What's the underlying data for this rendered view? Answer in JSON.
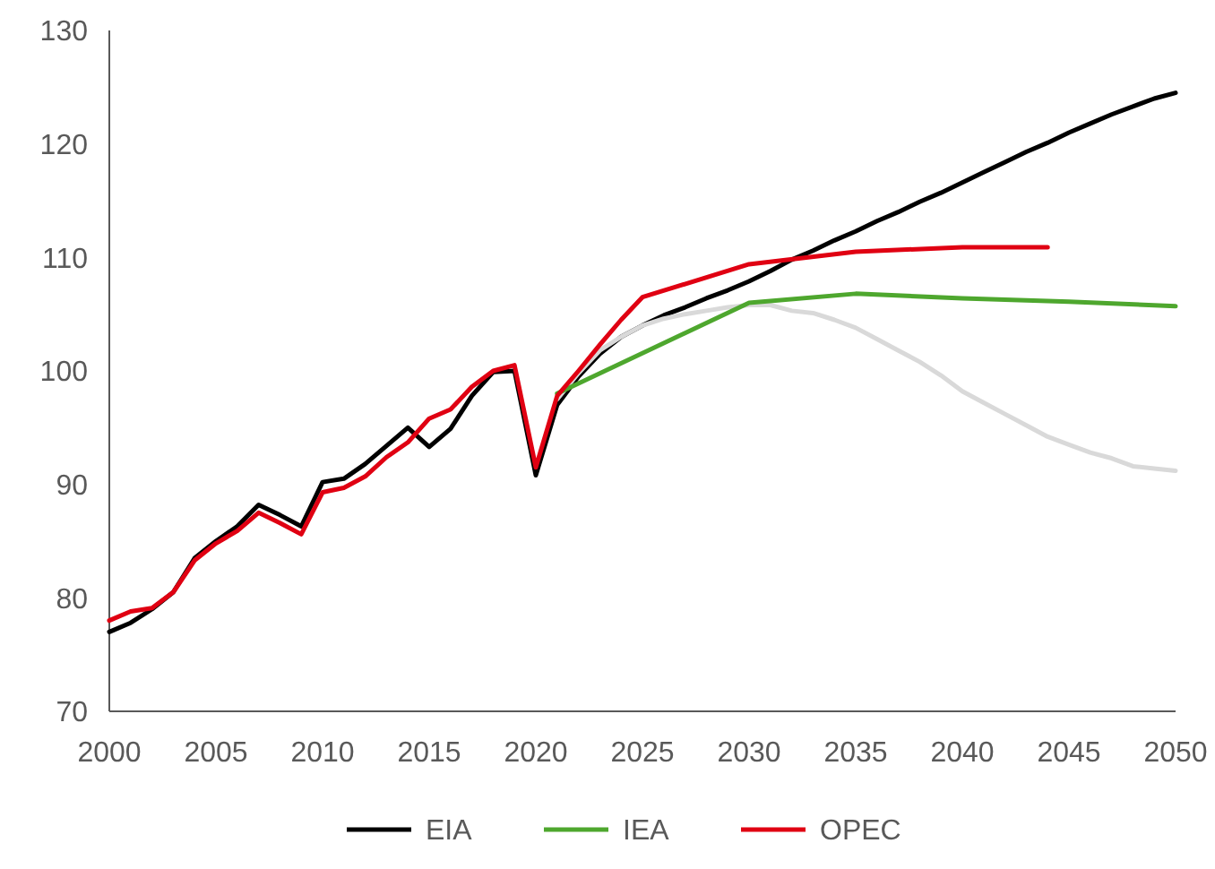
{
  "chart_data": {
    "type": "line",
    "xlim": [
      2000,
      2050
    ],
    "xticks": [
      2000,
      2005,
      2010,
      2015,
      2020,
      2025,
      2030,
      2035,
      2040,
      2045,
      2050
    ],
    "ylim": [
      70,
      130
    ],
    "yticks": [
      70,
      80,
      90,
      100,
      110,
      120,
      130
    ],
    "grid": false,
    "legend": "bottom",
    "line_style": "solid",
    "marker": "none",
    "series": [
      {
        "name": "EIA",
        "color": "#000000",
        "x": [
          2000,
          2001,
          2002,
          2003,
          2004,
          2005,
          2006,
          2007,
          2008,
          2009,
          2010,
          2011,
          2012,
          2013,
          2014,
          2015,
          2016,
          2017,
          2018,
          2019,
          2020,
          2021,
          2022,
          2023,
          2024,
          2025,
          2026,
          2027,
          2028,
          2029,
          2030,
          2031,
          2032,
          2033,
          2034,
          2035,
          2036,
          2037,
          2038,
          2039,
          2040,
          2041,
          2042,
          2043,
          2044,
          2045,
          2046,
          2047,
          2048,
          2049,
          2050
        ],
        "values": [
          77,
          77.8,
          79,
          80.5,
          83.5,
          85,
          86.3,
          88.2,
          87.3,
          86.3,
          90.2,
          90.5,
          91.8,
          93.4,
          95,
          93.3,
          94.9,
          97.8,
          99.9,
          100,
          90.8,
          97,
          99.5,
          101.5,
          103,
          104,
          104.9,
          105.6,
          106.4,
          107.1,
          107.9,
          108.8,
          109.8,
          110.6,
          111.5,
          112.3,
          113.2,
          114,
          114.9,
          115.7,
          116.6,
          117.5,
          118.4,
          119.3,
          120.1,
          121,
          121.8,
          122.6,
          123.3,
          124,
          124.5
        ]
      },
      {
        "color": "#d9d9d9",
        "x": [
          2021,
          2022,
          2023,
          2024,
          2025,
          2026,
          2027,
          2028,
          2029,
          2030,
          2031,
          2032,
          2033,
          2034,
          2035,
          2036,
          2037,
          2038,
          2039,
          2040,
          2041,
          2042,
          2043,
          2044,
          2045,
          2046,
          2047,
          2048,
          2049,
          2050
        ],
        "values": [
          97.5,
          99.8,
          101.8,
          103,
          104,
          104.6,
          105,
          105.3,
          105.6,
          105.8,
          105.8,
          105.3,
          105.1,
          104.5,
          103.8,
          102.8,
          101.8,
          100.8,
          99.6,
          98.2,
          97.2,
          96.2,
          95.2,
          94.2,
          93.5,
          92.8,
          92.3,
          91.6,
          91.4,
          91.2
        ]
      },
      {
        "name": "IEA",
        "color": "#4ea72e",
        "x": [
          2021,
          2030,
          2035,
          2040,
          2045,
          2050
        ],
        "values": [
          98,
          106,
          106.8,
          106.4,
          106.1,
          105.7
        ]
      },
      {
        "name": "OPEC",
        "color": "#e00012",
        "x": [
          2000,
          2001,
          2002,
          2003,
          2004,
          2005,
          2006,
          2007,
          2008,
          2009,
          2010,
          2011,
          2012,
          2013,
          2014,
          2015,
          2016,
          2017,
          2018,
          2019,
          2020,
          2021,
          2022,
          2023,
          2024,
          2025,
          2030,
          2035,
          2040,
          2044
        ],
        "values": [
          78,
          78.8,
          79.1,
          80.5,
          83.3,
          84.8,
          85.9,
          87.5,
          86.6,
          85.6,
          89.3,
          89.7,
          90.7,
          92.4,
          93.7,
          95.8,
          96.6,
          98.6,
          100,
          100.5,
          91.5,
          97.8,
          100,
          102.3,
          104.5,
          106.5,
          109.4,
          110.5,
          110.9,
          110.9
        ]
      }
    ]
  }
}
